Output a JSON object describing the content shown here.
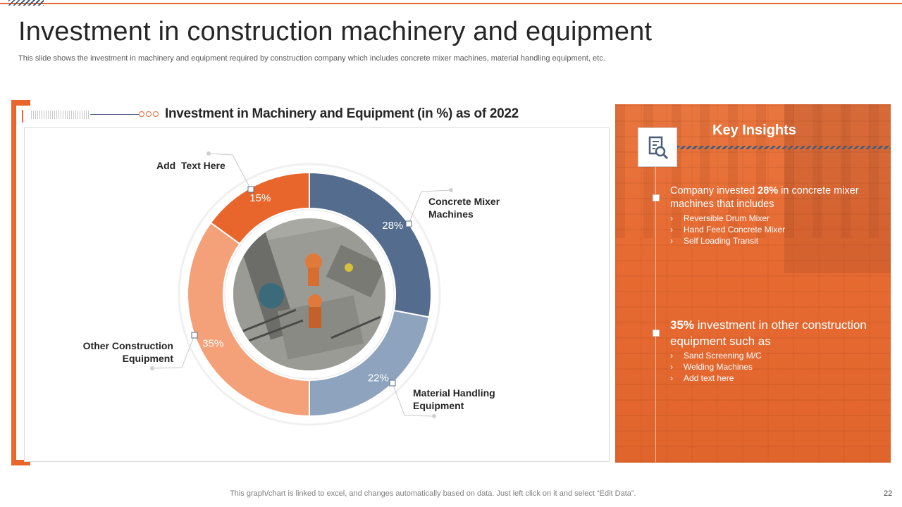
{
  "slide": {
    "title": "Investment in construction machinery and equipment",
    "subtitle": "This slide shows the investment in machinery and equipment required by construction company which includes concrete mixer machines, material handling equipment, etc.",
    "footer": "This graph/chart is linked to excel,  and changes automatically based on data. Just left click on it and select “Edit Data”.",
    "page_number": "22"
  },
  "colors": {
    "accent": "#e8662c",
    "dark_blue": "#546d8e",
    "light_blue": "#8ea3bd",
    "peach": "#f4a179"
  },
  "chart_data": {
    "type": "pie",
    "variant": "donut",
    "title": "Investment in Machinery and Equipment (in %) as of 2022",
    "unit": "%",
    "slices": [
      {
        "label": "Concrete Mixer Machines",
        "value": 28,
        "value_label": "28%",
        "color": "#546d8e"
      },
      {
        "label": "Material Handling Equipment",
        "value": 22,
        "value_label": "22%",
        "color": "#8ea3bd"
      },
      {
        "label": "Other Construction Equipment",
        "value": 35,
        "value_label": "35%",
        "color": "#f4a179"
      },
      {
        "label": "Add  Text Here",
        "value": 15,
        "value_label": "15%",
        "color": "#e8662c"
      }
    ]
  },
  "callouts": {
    "concrete_line1": "Concrete Mixer",
    "concrete_line2": "Machines",
    "material_line1": "Material Handling",
    "material_line2": "Equipment",
    "other_line1": "Other Construction",
    "other_line2": "Equipment",
    "add_text": "Add  Text Here"
  },
  "insights": {
    "title": "Key Insights",
    "icon": "search-document-icon",
    "block1": {
      "pre": "Company invested ",
      "bold": "28%",
      "post": " in concrete mixer machines that includes",
      "items": [
        "Reversible  Drum Mixer",
        "Hand Feed Concrete Mixer",
        "Self Loading  Transit"
      ]
    },
    "block2": {
      "bold": "35%",
      "post": " investment in other construction equipment such as",
      "items": [
        "Sand Screening M/C",
        "Welding Machines",
        "Add text here"
      ]
    }
  }
}
